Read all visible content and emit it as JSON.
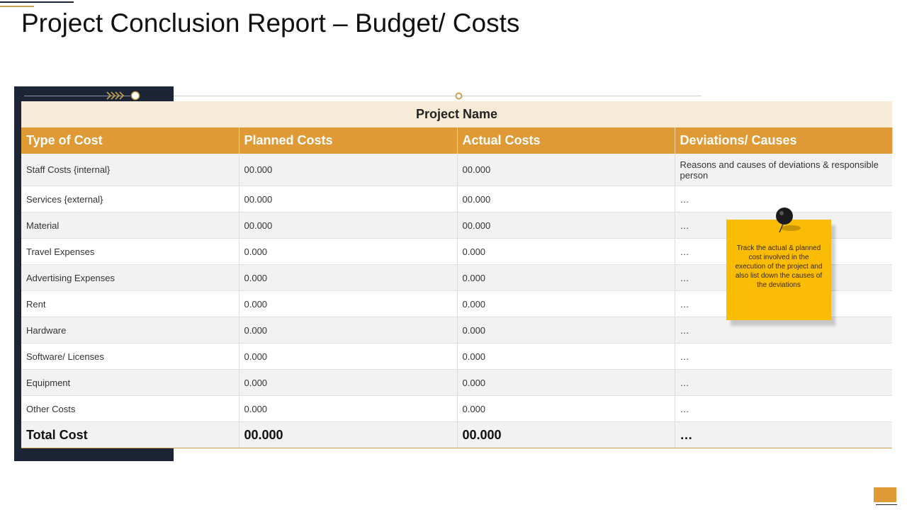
{
  "title": "Project Conclusion Report – Budget/ Costs",
  "table": {
    "caption": "Project Name",
    "header": [
      "Type of Cost",
      "Planned Costs",
      "Actual Costs",
      "Deviations/ Causes"
    ],
    "rows": [
      [
        "Staff Costs {internal}",
        "00.000",
        "00.000",
        "Reasons and causes of deviations & responsible person"
      ],
      [
        "Services {external}",
        "00.000",
        "00.000",
        "…"
      ],
      [
        "Material",
        "00.000",
        "00.000",
        "…"
      ],
      [
        "Travel  Expenses",
        "0.000",
        "0.000",
        "…"
      ],
      [
        "Advertising Expenses",
        "0.000",
        "0.000",
        "…"
      ],
      [
        "Rent",
        "0.000",
        "0.000",
        "…"
      ],
      [
        "Hardware",
        "0.000",
        "0.000",
        "…"
      ],
      [
        "Software/ Licenses",
        "0.000",
        "0.000",
        "…"
      ],
      [
        "Equipment",
        "0.000",
        "0.000",
        "…"
      ],
      [
        "Other Costs",
        "0.000",
        "0.000",
        "…"
      ]
    ],
    "total": [
      "Total Cost",
      "00.000",
      "00.000",
      "…"
    ]
  },
  "note": "Track the actual & planned cost involved in the execution of the project and also list down the causes of the deviations"
}
